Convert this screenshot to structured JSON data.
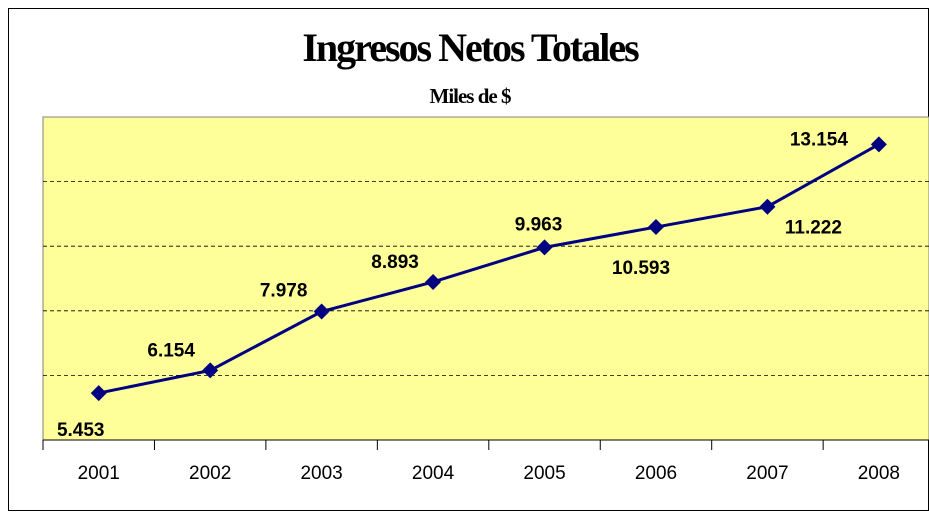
{
  "chart_data": {
    "type": "line",
    "title": "Ingresos Netos Totales",
    "subtitle": "Miles de $",
    "categories": [
      "2001",
      "2002",
      "2003",
      "2004",
      "2005",
      "2006",
      "2007",
      "2008"
    ],
    "values": [
      5453,
      6154,
      7978,
      8893,
      9963,
      10593,
      11222,
      13154
    ],
    "value_labels": [
      "5.453",
      "6.154",
      "7.978",
      "8.893",
      "9.963",
      "10.593",
      "11.222",
      "13.154"
    ],
    "color": "#000080",
    "ylim": [
      4000,
      14000
    ],
    "yticks": [
      4000,
      6000,
      8000,
      10000,
      12000,
      14000
    ],
    "grid": true
  }
}
